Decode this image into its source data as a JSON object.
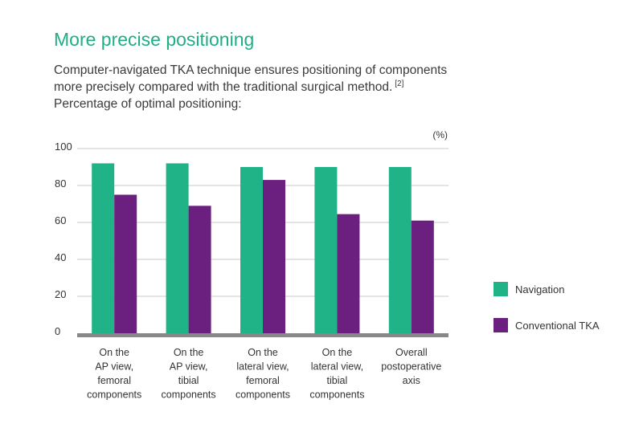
{
  "title": "More precise positioning",
  "subtitle_lines": [
    "Computer-navigated TKA technique ensures positioning of components",
    "more precisely compared with the traditional surgical method.",
    "Percentage of optimal positioning:"
  ],
  "citation": "[2]",
  "colors": {
    "navigation": "#1fb387",
    "conventional": "#6b1f7f",
    "axis": "#888888",
    "grid": "#c8c8c8",
    "title": "#1fae86"
  },
  "chart_data": {
    "type": "bar",
    "unit_label": "(%)",
    "categories": [
      [
        "On the",
        "AP view,",
        "femoral",
        "components"
      ],
      [
        "On the",
        "AP view,",
        "tibial",
        "components"
      ],
      [
        "On the",
        "lateral view,",
        "femoral",
        "components"
      ],
      [
        "On the",
        "lateral view,",
        "tibial",
        "components"
      ],
      [
        "Overall",
        "postoperative",
        "axis"
      ]
    ],
    "series": [
      {
        "name": "Navigation",
        "values": [
          92,
          92,
          90,
          90,
          90
        ]
      },
      {
        "name": "Conventional TKA",
        "values": [
          75,
          69,
          83,
          64.5,
          61
        ]
      }
    ],
    "ylim": [
      0,
      100
    ],
    "yticks": [
      0,
      20,
      40,
      60,
      80,
      100
    ],
    "grid": true,
    "legend_position": "right"
  }
}
